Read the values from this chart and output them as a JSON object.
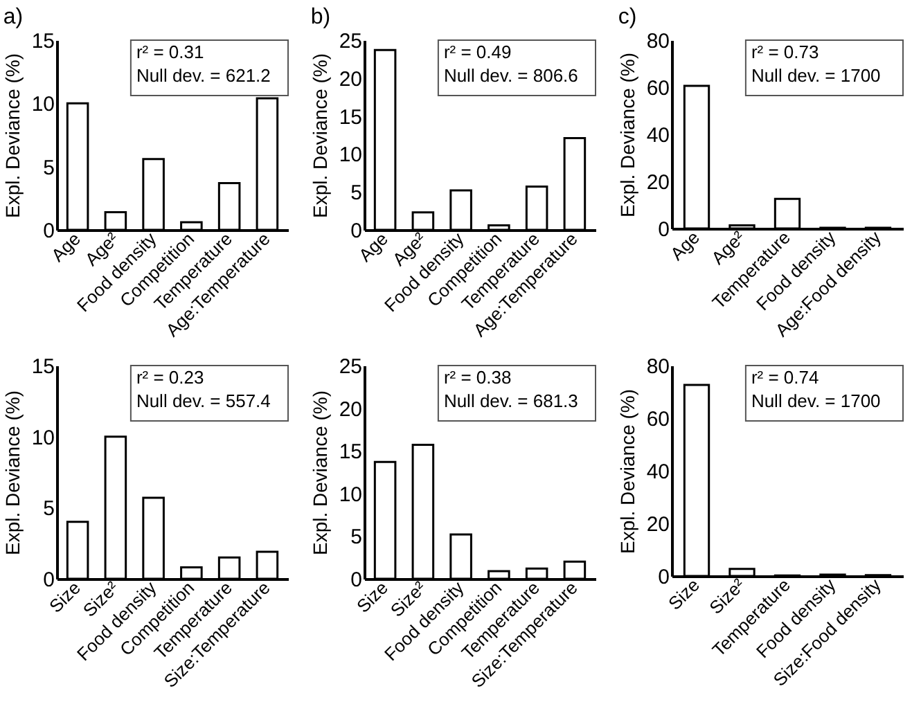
{
  "chart_data": [
    {
      "type": "bar",
      "title": "a)",
      "ylabel": "Expl. Deviance (%)",
      "categories": [
        "Age",
        "Age²",
        "Food density",
        "Competition",
        "Temperature",
        "Age:Temperature"
      ],
      "values": [
        10.0,
        1.4,
        5.6,
        0.6,
        3.7,
        10.4
      ],
      "color": "#ffffff",
      "ylim": [
        0,
        15
      ],
      "yticks": [
        0,
        5,
        10,
        15
      ],
      "grid": false,
      "annotations": [
        "r² = 0.31",
        "Null dev. = 621.2"
      ]
    },
    {
      "type": "bar",
      "title": "b)",
      "ylabel": "Expl. Deviance (%)",
      "categories": [
        "Age",
        "Age²",
        "Food density",
        "Competition",
        "Temperature",
        "Age:Temperature"
      ],
      "values": [
        23.7,
        2.3,
        5.2,
        0.6,
        5.7,
        12.1
      ],
      "color": "#ffffff",
      "ylim": [
        0,
        25
      ],
      "yticks": [
        0,
        5,
        10,
        15,
        20,
        25
      ],
      "grid": false,
      "annotations": [
        "r² = 0.49",
        "Null dev. = 806.6"
      ]
    },
    {
      "type": "bar",
      "title": "c)",
      "ylabel": "Expl. Deviance (%)",
      "categories": [
        "Age",
        "Age²",
        "Temperature",
        "Food density",
        "Age:Food density"
      ],
      "values": [
        60.6,
        1.3,
        12.6,
        0.3,
        0.3
      ],
      "color": "#ffffff",
      "ylim": [
        0,
        80
      ],
      "yticks": [
        0,
        20,
        40,
        60,
        80
      ],
      "grid": false,
      "annotations": [
        "r² = 0.73",
        "Null dev. = 1700"
      ]
    },
    {
      "type": "bar",
      "ylabel": "Expl. Deviance (%)",
      "categories": [
        "Size",
        "Size²",
        "Food density",
        "Competition",
        "Temperature",
        "Size:Temperature"
      ],
      "values": [
        4.0,
        10.0,
        5.7,
        0.8,
        1.5,
        1.9
      ],
      "color": "#ffffff",
      "ylim": [
        0,
        15
      ],
      "yticks": [
        0,
        5,
        10,
        15
      ],
      "grid": false,
      "annotations": [
        "r² = 0.23",
        "Null dev. = 557.4"
      ]
    },
    {
      "type": "bar",
      "ylabel": "Expl. Deviance (%)",
      "categories": [
        "Size",
        "Size²",
        "Food density",
        "Competition",
        "Temperature",
        "Size:Temperature"
      ],
      "values": [
        13.7,
        15.7,
        5.2,
        0.9,
        1.2,
        2.0
      ],
      "color": "#ffffff",
      "ylim": [
        0,
        25
      ],
      "yticks": [
        0,
        5,
        10,
        15,
        20,
        25
      ],
      "grid": false,
      "annotations": [
        "r² = 0.38",
        "Null dev. = 681.3"
      ]
    },
    {
      "type": "bar",
      "ylabel": "Expl. Deviance (%)",
      "categories": [
        "Size",
        "Size²",
        "Temperature",
        "Food density",
        "Size:Food density"
      ],
      "values": [
        72.6,
        2.7,
        0.2,
        0.5,
        0.3
      ],
      "color": "#ffffff",
      "ylim": [
        0,
        80
      ],
      "yticks": [
        0,
        20,
        40,
        60,
        80
      ],
      "grid": false,
      "annotations": [
        "r² = 0.74",
        "Null dev. = 1700"
      ]
    }
  ]
}
